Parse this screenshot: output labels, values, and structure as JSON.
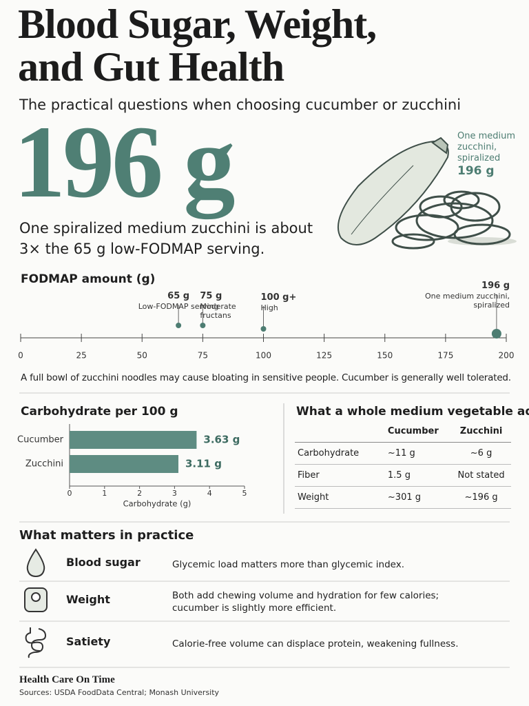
{
  "header": {
    "title_lines": [
      "Blood Sugar, Weight,",
      "and Gut Health"
    ],
    "subtitle": "The practical questions when choosing cucumber or zucchini"
  },
  "hero": {
    "amount": "196 g",
    "description": "One spiralized medium zucchini is about 3× the 65 g low-FODMAP serving.",
    "illustration_label": "One medium zucchini, spiralized",
    "illustration_amount": "196 g"
  },
  "chart_data": [
    {
      "type": "number-line",
      "title": "FODMAP amount (g)",
      "values": [
        65,
        75,
        100,
        196
      ],
      "value_labels": [
        "65 g",
        "75 g",
        "100 g+",
        "196 g"
      ],
      "notes": [
        "Low-FODMAP serving",
        "Moderate fructans",
        "High",
        "One medium zucchini, spiralized"
      ],
      "xlim": [
        0,
        200
      ],
      "xticks": [
        0,
        25,
        50,
        75,
        100,
        125,
        150,
        175,
        200
      ],
      "color": "#4d7d72"
    },
    {
      "type": "hbar",
      "title": "Carbohydrate per 100 g",
      "categories": [
        "Cucumber",
        "Zucchini"
      ],
      "values": [
        3.63,
        3.11
      ],
      "value_labels": [
        "3.63 g",
        "3.11 g"
      ],
      "xlabel": "Carbohydrate (g)",
      "xlim": [
        0,
        5
      ],
      "xticks": [
        0,
        1,
        2,
        3,
        4,
        5
      ],
      "color": "#5e8c82"
    }
  ],
  "caption": "A full bowl of zucchini noodles may cause bloating in sensitive people. Cucumber is generally well tolerated.",
  "table": {
    "title": "What a whole medium vegetable adds",
    "columns": [
      "Cucumber",
      "Zucchini"
    ],
    "rows": [
      [
        "Carbohydrate",
        "~11 g",
        "~6 g"
      ],
      [
        "Fiber",
        "1.5 g",
        "Not stated"
      ],
      [
        "Weight",
        "~301 g",
        "~196 g"
      ]
    ]
  },
  "practice": {
    "title": "What matters in practice",
    "items": [
      {
        "label": "Blood sugar",
        "text": "Glycemic load matters more than glycemic index."
      },
      {
        "label": "Weight",
        "text": "Both add chewing volume and hydration for few calories; cucumber is slightly more efficient."
      },
      {
        "label": "Satiety",
        "text": "Calorie-free volume can displace protein, weakening fullness."
      }
    ]
  },
  "footer": {
    "brand": "Health Care On Time",
    "sources": "Sources: USDA FoodData Central; Monash University"
  }
}
